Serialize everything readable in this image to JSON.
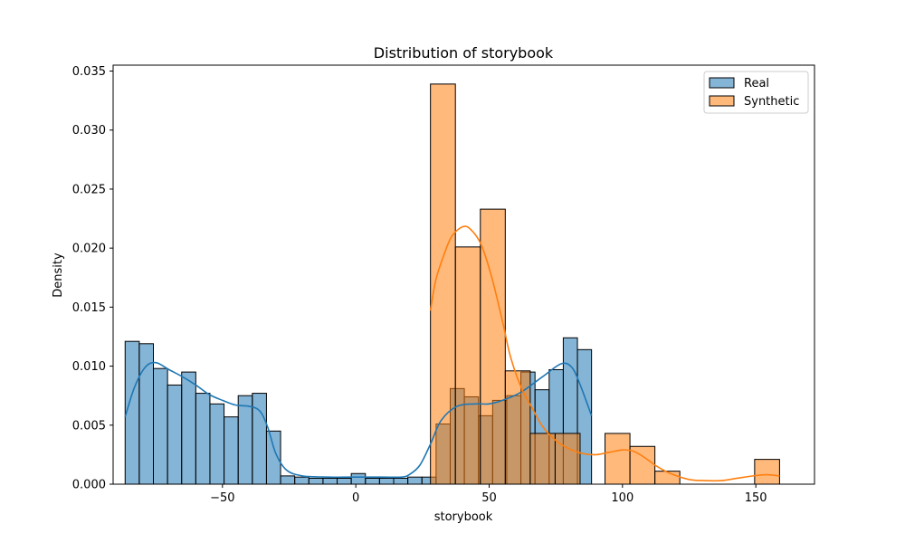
{
  "chart_data": {
    "type": "histogram",
    "title": "Distribution of storybook",
    "xlabel": "storybook",
    "ylabel": "Density",
    "xlim": [
      -91,
      172
    ],
    "ylim": [
      0,
      0.0355
    ],
    "xticks": [
      -50,
      0,
      50,
      100,
      150
    ],
    "xtick_labels": [
      "−50",
      "0",
      "50",
      "100",
      "150"
    ],
    "yticks": [
      0.0,
      0.005,
      0.01,
      0.015,
      0.02,
      0.025,
      0.03,
      0.035
    ],
    "ytick_labels": [
      "0.000",
      "0.005",
      "0.010",
      "0.015",
      "0.020",
      "0.025",
      "0.030",
      "0.035"
    ],
    "grid": false,
    "legend_position": "top-right",
    "series": [
      {
        "name": "Real",
        "color": "#1f77b4",
        "bin_edges": [
          -86.5,
          -81.2,
          -75.9,
          -70.6,
          -65.3,
          -60.0,
          -54.7,
          -49.4,
          -44.1,
          -38.8,
          -33.5,
          -28.2,
          -22.9,
          -17.6,
          -12.3,
          -7.0,
          -1.7,
          3.6,
          8.9,
          14.2,
          19.5,
          24.8,
          30.1,
          35.4,
          40.7,
          46.0,
          51.3,
          56.6,
          61.9,
          67.2,
          72.5,
          77.8,
          83.1,
          88.4
        ],
        "density": [
          0.0121,
          0.0119,
          0.0098,
          0.0084,
          0.0095,
          0.0077,
          0.0068,
          0.0057,
          0.0075,
          0.0077,
          0.0045,
          0.0007,
          0.0006,
          0.0005,
          0.0005,
          0.0005,
          0.0009,
          0.0005,
          0.0005,
          0.0005,
          0.0006,
          0.0006,
          0.0051,
          0.0081,
          0.0074,
          0.0058,
          0.0071,
          0.0075,
          0.0095,
          0.008,
          0.0097,
          0.0124,
          0.0114
        ],
        "kde": [
          [
            -86.5,
            0.0057
          ],
          [
            -83,
            0.0082
          ],
          [
            -79,
            0.0099
          ],
          [
            -75,
            0.0103
          ],
          [
            -70,
            0.0097
          ],
          [
            -65,
            0.0091
          ],
          [
            -60,
            0.0084
          ],
          [
            -55,
            0.0076
          ],
          [
            -50,
            0.0071
          ],
          [
            -45,
            0.0067
          ],
          [
            -40,
            0.0066
          ],
          [
            -36,
            0.0062
          ],
          [
            -33,
            0.0048
          ],
          [
            -30,
            0.0026
          ],
          [
            -26,
            0.0012
          ],
          [
            -20,
            0.0007
          ],
          [
            -10,
            0.0006
          ],
          [
            0,
            0.0006
          ],
          [
            10,
            0.0006
          ],
          [
            17,
            0.0006
          ],
          [
            20,
            0.0008
          ],
          [
            24,
            0.0016
          ],
          [
            28,
            0.0034
          ],
          [
            32,
            0.0054
          ],
          [
            38,
            0.0066
          ],
          [
            45,
            0.0068
          ],
          [
            50,
            0.0068
          ],
          [
            55,
            0.0071
          ],
          [
            62,
            0.0078
          ],
          [
            70,
            0.0091
          ],
          [
            77,
            0.0102
          ],
          [
            81,
            0.0099
          ],
          [
            84,
            0.0085
          ],
          [
            88.4,
            0.0058
          ]
        ]
      },
      {
        "name": "Synthetic",
        "color": "#ff7f0e",
        "bin_edges": [
          28,
          37.35,
          46.7,
          56.05,
          65.4,
          74.75,
          84.1,
          93.45,
          102.8,
          112.15,
          121.5,
          130.85,
          140.2,
          149.55,
          158.9
        ],
        "density": [
          0.0339,
          0.0201,
          0.0233,
          0.0096,
          0.0043,
          0.0043,
          0.0,
          0.0043,
          0.0032,
          0.0011,
          0.0,
          0.0,
          0.0,
          0.0021
        ],
        "kde": [
          [
            28,
            0.0147
          ],
          [
            30,
            0.0173
          ],
          [
            33,
            0.0194
          ],
          [
            36,
            0.021
          ],
          [
            40,
            0.0218
          ],
          [
            43,
            0.0216
          ],
          [
            47,
            0.0203
          ],
          [
            51,
            0.0175
          ],
          [
            55,
            0.0138
          ],
          [
            58,
            0.0108
          ],
          [
            62,
            0.0082
          ],
          [
            66,
            0.0065
          ],
          [
            70,
            0.0049
          ],
          [
            75,
            0.0037
          ],
          [
            80,
            0.003
          ],
          [
            85,
            0.0026
          ],
          [
            90,
            0.0025
          ],
          [
            95,
            0.0027
          ],
          [
            100,
            0.0029
          ],
          [
            104,
            0.0028
          ],
          [
            108,
            0.0023
          ],
          [
            113,
            0.0015
          ],
          [
            118,
            0.0009
          ],
          [
            125,
            0.0004
          ],
          [
            131,
            0.0003
          ],
          [
            137,
            0.0003
          ],
          [
            143,
            0.0005
          ],
          [
            149,
            0.0007
          ],
          [
            154,
            0.0008
          ],
          [
            158.9,
            0.0007
          ]
        ]
      }
    ]
  }
}
